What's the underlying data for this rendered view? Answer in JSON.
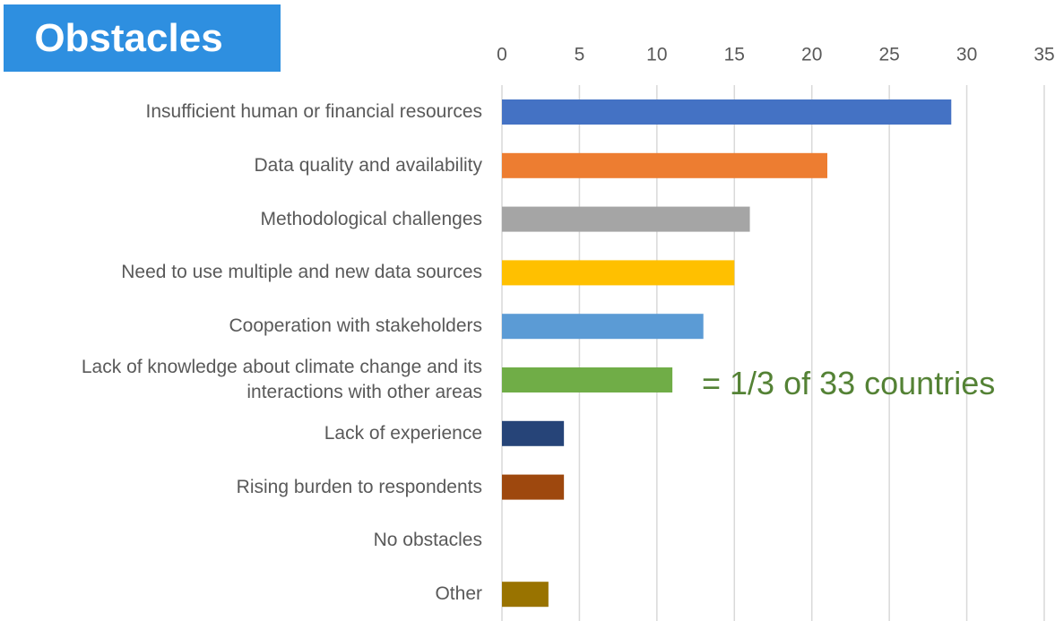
{
  "chart_data": {
    "type": "bar",
    "orientation": "horizontal",
    "title": "Obstacles",
    "categories": [
      "Insufficient human or financial resources",
      "Data quality and availability",
      "Methodological challenges",
      "Need to use multiple and new data sources",
      "Cooperation with stakeholders",
      "Lack of knowledge about climate change and its interactions with other areas",
      "Lack of experience",
      "Rising burden to respondents",
      "No obstacles",
      "Other"
    ],
    "values": [
      29,
      21,
      16,
      15,
      13,
      11,
      4,
      4,
      0,
      3
    ],
    "colors": [
      "#4472c4",
      "#ed7d31",
      "#a5a5a5",
      "#ffc000",
      "#5b9bd5",
      "#70ad47",
      "#264478",
      "#9e480e",
      "#636363",
      "#997300"
    ],
    "xlim": [
      0,
      35
    ],
    "xticks": [
      0,
      5,
      10,
      15,
      20,
      25,
      30,
      35
    ],
    "grid": true,
    "annotation": "= 1/3 of 33 countries"
  }
}
